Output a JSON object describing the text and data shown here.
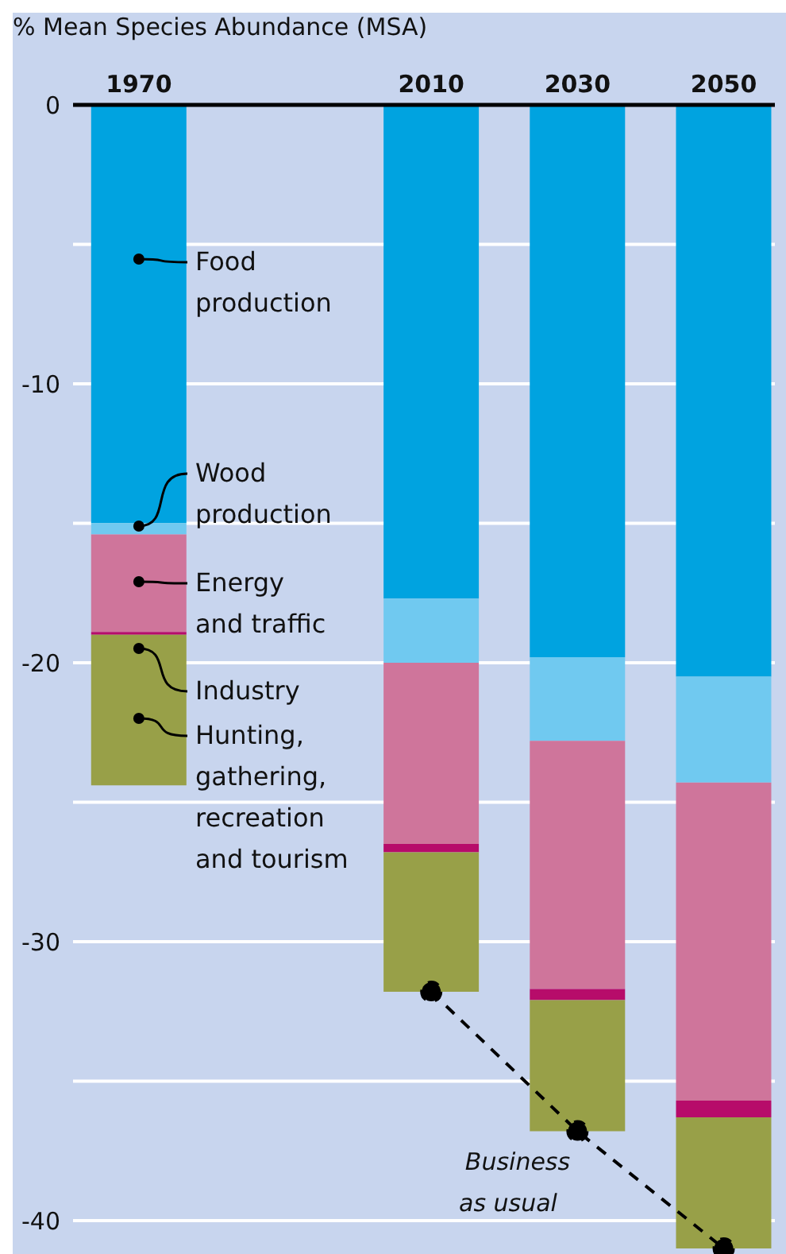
{
  "chart_data": {
    "type": "bar",
    "stacked": true,
    "ylabel": "% Mean Species Abundance (MSA)",
    "x": [
      1970,
      2010,
      2030,
      2050
    ],
    "xlim": [
      1961,
      2057
    ],
    "xticks": [
      1970,
      2010,
      2030,
      2050
    ],
    "ylim": [
      -41.2,
      0
    ],
    "yticks": [
      0,
      {
        "value": -5,
        "label": null
      },
      -10,
      {
        "value": -15,
        "label": null
      },
      -20,
      {
        "value": -25,
        "label": null
      },
      -30,
      {
        "value": -35,
        "label": null
      },
      -40
    ],
    "grid": "y",
    "series": [
      {
        "name": "Food production",
        "color": "#00a3e0",
        "values": [
          -15.0,
          -17.7,
          -19.8,
          -20.5
        ]
      },
      {
        "name": "Wood production",
        "color": "#70c9f0",
        "values": [
          -0.4,
          -2.3,
          -3.0,
          -3.8
        ]
      },
      {
        "name": "Energy and traffic",
        "color": "#cf759b",
        "values": [
          -3.5,
          -6.5,
          -8.9,
          -11.4
        ]
      },
      {
        "name": "Industry",
        "color": "#b70c6a",
        "values": [
          -0.1,
          -0.3,
          -0.4,
          -0.6
        ]
      },
      {
        "name": "Hunting, gathering, recreation and tourism",
        "color": "#98a048",
        "values": [
          -5.4,
          -5.0,
          -4.7,
          -4.7
        ]
      },
      {
        "type": "line",
        "x": [
          2010,
          2030,
          2050
        ],
        "values": [
          -31.8,
          -36.8,
          -41.0
        ],
        "color": "#000000",
        "marker": "circle",
        "line_style": "dashed"
      }
    ],
    "annotations": [
      "Business as usual"
    ]
  }
}
